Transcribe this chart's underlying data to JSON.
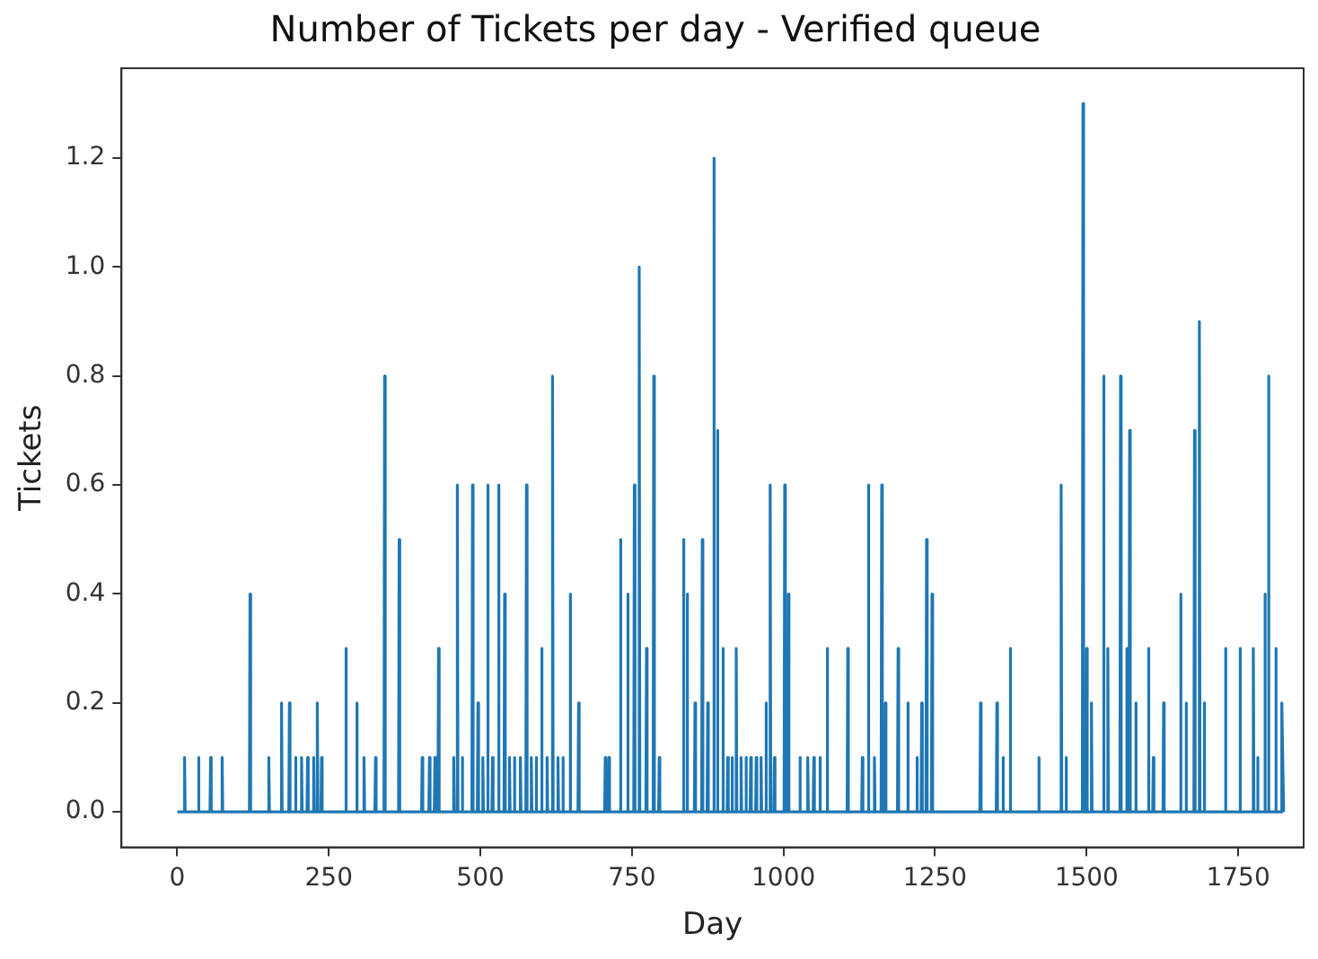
{
  "chart_data": {
    "type": "line",
    "title": "Number of Tickets per day - Verified queue",
    "xlabel": "Day",
    "ylabel": "Tickets",
    "series": [
      {
        "color": "#1f77b4",
        "x": [
          0,
          11,
          12,
          13,
          34,
          35,
          36,
          54,
          55,
          56,
          73,
          74,
          75,
          119,
          120,
          121,
          150,
          151,
          152,
          171,
          172,
          173,
          184,
          185,
          186,
          194,
          195,
          196,
          204,
          205,
          206,
          214,
          215,
          216,
          224,
          225,
          226,
          230,
          231,
          232,
          237,
          238,
          239,
          277,
          278,
          279,
          295,
          296,
          297,
          307,
          308,
          309,
          326,
          327,
          328,
          341,
          342,
          343,
          365,
          366,
          367,
          403,
          404,
          405,
          415,
          416,
          417,
          424,
          425,
          426,
          430,
          431,
          432,
          455,
          456,
          457,
          461,
          462,
          463,
          469,
          470,
          471,
          486,
          487,
          488,
          495,
          496,
          497,
          503,
          504,
          505,
          511,
          512,
          513,
          519,
          520,
          521,
          529,
          530,
          531,
          539,
          540,
          541,
          547,
          548,
          549,
          555,
          556,
          557,
          565,
          566,
          567,
          575,
          576,
          577,
          583,
          584,
          585,
          591,
          592,
          593,
          600,
          601,
          602,
          609,
          610,
          611,
          618,
          619,
          620,
          627,
          628,
          629,
          635,
          636,
          637,
          647,
          648,
          649,
          661,
          662,
          663,
          705,
          706,
          707,
          711,
          712,
          713,
          730,
          731,
          732,
          742,
          743,
          744,
          753,
          754,
          755,
          761,
          762,
          763,
          773,
          774,
          775,
          785,
          786,
          787,
          794,
          795,
          796,
          834,
          835,
          836,
          840,
          841,
          842,
          853,
          854,
          855,
          865,
          866,
          867,
          874,
          875,
          876,
          884,
          885,
          886,
          890,
          891,
          892,
          899,
          900,
          901,
          907,
          908,
          909,
          914,
          915,
          916,
          921,
          922,
          923,
          929,
          930,
          931,
          937,
          938,
          939,
          945,
          946,
          947,
          954,
          955,
          956,
          962,
          963,
          964,
          970,
          971,
          972,
          977,
          978,
          979,
          984,
          985,
          986,
          1001,
          1002,
          1003,
          1007,
          1008,
          1009,
          1026,
          1027,
          1028,
          1039,
          1040,
          1041,
          1049,
          1050,
          1051,
          1059,
          1060,
          1061,
          1071,
          1072,
          1073,
          1105,
          1106,
          1107,
          1129,
          1130,
          1131,
          1139,
          1140,
          1141,
          1149,
          1150,
          1151,
          1161,
          1162,
          1163,
          1167,
          1168,
          1169,
          1188,
          1189,
          1190,
          1204,
          1205,
          1206,
          1219,
          1220,
          1221,
          1227,
          1228,
          1229,
          1235,
          1236,
          1237,
          1244,
          1245,
          1246,
          1324,
          1325,
          1326,
          1351,
          1352,
          1353,
          1361,
          1362,
          1363,
          1373,
          1374,
          1375,
          1420,
          1421,
          1422,
          1457,
          1458,
          1459,
          1465,
          1466,
          1467,
          1493,
          1494,
          1495,
          1499,
          1500,
          1501,
          1507,
          1508,
          1509,
          1527,
          1528,
          1529,
          1534,
          1535,
          1536,
          1555,
          1556,
          1557,
          1565,
          1566,
          1567,
          1570,
          1571,
          1572,
          1580,
          1581,
          1582,
          1601,
          1602,
          1603,
          1609,
          1610,
          1611,
          1626,
          1627,
          1628,
          1654,
          1655,
          1656,
          1663,
          1664,
          1665,
          1677,
          1678,
          1679,
          1685,
          1686,
          1687,
          1693,
          1694,
          1695,
          1728,
          1729,
          1730,
          1752,
          1753,
          1754,
          1774,
          1775,
          1776,
          1781,
          1782,
          1783,
          1793,
          1794,
          1795,
          1799,
          1800,
          1801,
          1811,
          1812,
          1813,
          1821,
          1822,
          1825
        ],
        "values": [
          0,
          0,
          0.1,
          0,
          0,
          0.1,
          0,
          0,
          0.1,
          0,
          0,
          0.1,
          0,
          0,
          0.4,
          0,
          0,
          0.1,
          0,
          0,
          0.2,
          0,
          0,
          0.2,
          0,
          0,
          0.1,
          0,
          0,
          0.1,
          0,
          0,
          0.1,
          0,
          0,
          0.1,
          0,
          0,
          0.2,
          0,
          0,
          0.1,
          0,
          0,
          0.3,
          0,
          0,
          0.2,
          0,
          0,
          0.1,
          0,
          0,
          0.1,
          0,
          0,
          0.8,
          0,
          0,
          0.5,
          0,
          0,
          0.1,
          0,
          0,
          0.1,
          0,
          0,
          0.1,
          0,
          0,
          0.3,
          0,
          0,
          0.1,
          0,
          0,
          0.6,
          0,
          0,
          0.1,
          0,
          0,
          0.6,
          0,
          0,
          0.2,
          0,
          0,
          0.1,
          0,
          0,
          0.6,
          0,
          0,
          0.1,
          0,
          0,
          0.6,
          0,
          0,
          0.4,
          0,
          0,
          0.1,
          0,
          0,
          0.1,
          0,
          0,
          0.1,
          0,
          0,
          0.6,
          0,
          0,
          0.1,
          0,
          0,
          0.1,
          0,
          0,
          0.3,
          0,
          0,
          0.1,
          0,
          0,
          0.8,
          0,
          0,
          0.1,
          0,
          0,
          0.1,
          0,
          0,
          0.4,
          0,
          0,
          0.2,
          0,
          0,
          0.1,
          0,
          0,
          0.1,
          0,
          0,
          0.5,
          0,
          0,
          0.4,
          0,
          0,
          0.6,
          0,
          0,
          1.0,
          0,
          0,
          0.3,
          0,
          0,
          0.8,
          0,
          0,
          0.1,
          0,
          0,
          0.5,
          0,
          0,
          0.4,
          0,
          0,
          0.2,
          0,
          0,
          0.5,
          0,
          0,
          0.2,
          0,
          0,
          1.2,
          0,
          0,
          0.7,
          0,
          0,
          0.3,
          0,
          0,
          0.1,
          0,
          0,
          0.1,
          0,
          0,
          0.3,
          0,
          0,
          0.1,
          0,
          0,
          0.1,
          0,
          0,
          0.1,
          0,
          0,
          0.1,
          0,
          0,
          0.1,
          0,
          0,
          0.2,
          0,
          0,
          0.6,
          0,
          0,
          0.1,
          0,
          0,
          0.6,
          0,
          0,
          0.4,
          0,
          0,
          0.1,
          0,
          0,
          0.1,
          0,
          0,
          0.1,
          0,
          0,
          0.1,
          0,
          0,
          0.3,
          0,
          0,
          0.3,
          0,
          0,
          0.1,
          0,
          0,
          0.6,
          0,
          0,
          0.1,
          0,
          0,
          0.6,
          0,
          0,
          0.2,
          0,
          0,
          0.3,
          0,
          0,
          0.2,
          0,
          0,
          0.1,
          0,
          0,
          0.2,
          0,
          0,
          0.5,
          0,
          0,
          0.4,
          0,
          0,
          0.2,
          0,
          0,
          0.2,
          0,
          0,
          0.1,
          0,
          0,
          0.3,
          0,
          0,
          0.1,
          0,
          0,
          0.6,
          0,
          0,
          0.1,
          0,
          0,
          1.3,
          0,
          0,
          0.3,
          0,
          0,
          0.2,
          0,
          0,
          0.8,
          0,
          0,
          0.3,
          0,
          0,
          0.8,
          0,
          0,
          0.3,
          0,
          0,
          0.7,
          0,
          0,
          0.2,
          0,
          0,
          0.3,
          0,
          0,
          0.1,
          0,
          0,
          0.2,
          0,
          0,
          0.4,
          0,
          0,
          0.2,
          0,
          0,
          0.7,
          0,
          0,
          0.9,
          0,
          0,
          0.2,
          0,
          0,
          0.3,
          0,
          0,
          0.3,
          0,
          0,
          0.3,
          0,
          0,
          0.1,
          0,
          0,
          0.4,
          0,
          0,
          0.8,
          0,
          0,
          0.3,
          0,
          0,
          0.2,
          0
        ]
      }
    ],
    "xlim": [
      -92,
      1858
    ],
    "xticks": [
      0,
      250,
      500,
      750,
      1000,
      1250,
      1500,
      1750
    ],
    "ylim": [
      -0.065,
      1.365
    ],
    "yticks": [
      {
        "value": 0,
        "label": "0.0"
      },
      {
        "value": 0.2,
        "label": "0.2"
      },
      {
        "value": 0.4,
        "label": "0.4"
      },
      {
        "value": 0.6,
        "label": "0.6"
      },
      {
        "value": 0.8,
        "label": "0.8"
      },
      {
        "value": 1.0,
        "label": "1.0"
      },
      {
        "value": 1.2,
        "label": "1.2"
      }
    ],
    "grid": false,
    "legend": false,
    "marker": "none",
    "line_style": "solid"
  }
}
